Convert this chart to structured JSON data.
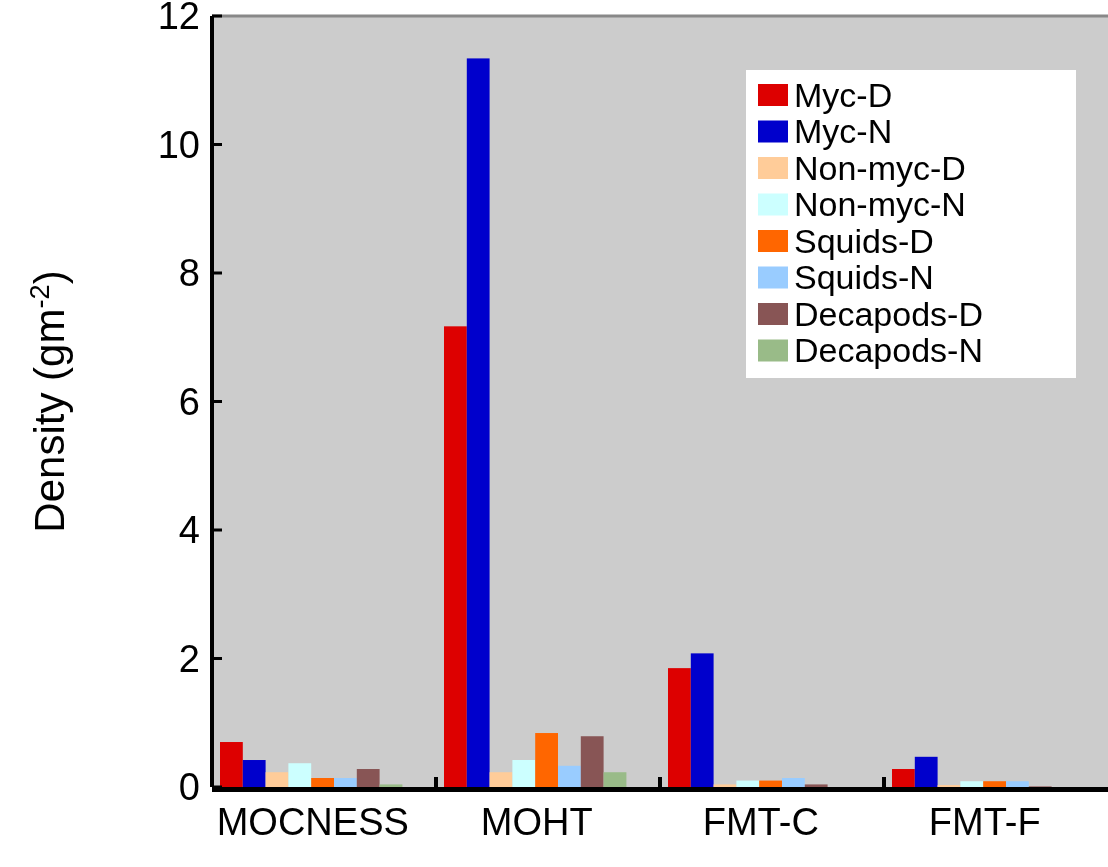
{
  "chart_data": {
    "type": "bar",
    "ylabel": "Density (gm$^{-2}$)",
    "categories": [
      "MOCNESS",
      "MOHT",
      "FMT-C",
      "FMT-F"
    ],
    "series": [
      {
        "name": "Myc-D",
        "color": "#dd0000",
        "values": [
          0.7,
          7.17,
          1.85,
          0.28
        ]
      },
      {
        "name": "Myc-N",
        "color": "#0000cc",
        "values": [
          0.42,
          11.34,
          2.08,
          0.47
        ]
      },
      {
        "name": "Non-myc-D",
        "color": "#ffcc99",
        "values": [
          0.23,
          0.23,
          0.04,
          0.03
        ]
      },
      {
        "name": "Non-myc-N",
        "color": "#ccffff",
        "values": [
          0.37,
          0.42,
          0.1,
          0.09
        ]
      },
      {
        "name": "Squids-D",
        "color": "#ff6600",
        "values": [
          0.14,
          0.84,
          0.1,
          0.09
        ]
      },
      {
        "name": "Squids-N",
        "color": "#99ccff",
        "values": [
          0.14,
          0.33,
          0.14,
          0.09
        ]
      },
      {
        "name": "Decapods-D",
        "color": "#885555",
        "values": [
          0.28,
          0.79,
          0.04,
          0.01
        ]
      },
      {
        "name": "Decapods-N",
        "color": "#99bb88",
        "values": [
          0.04,
          0.23,
          null,
          null
        ]
      }
    ],
    "ylim": [
      0,
      12
    ],
    "yticks": [
      0,
      2,
      4,
      6,
      8,
      10,
      12
    ],
    "grid": false,
    "legend": "top right"
  }
}
